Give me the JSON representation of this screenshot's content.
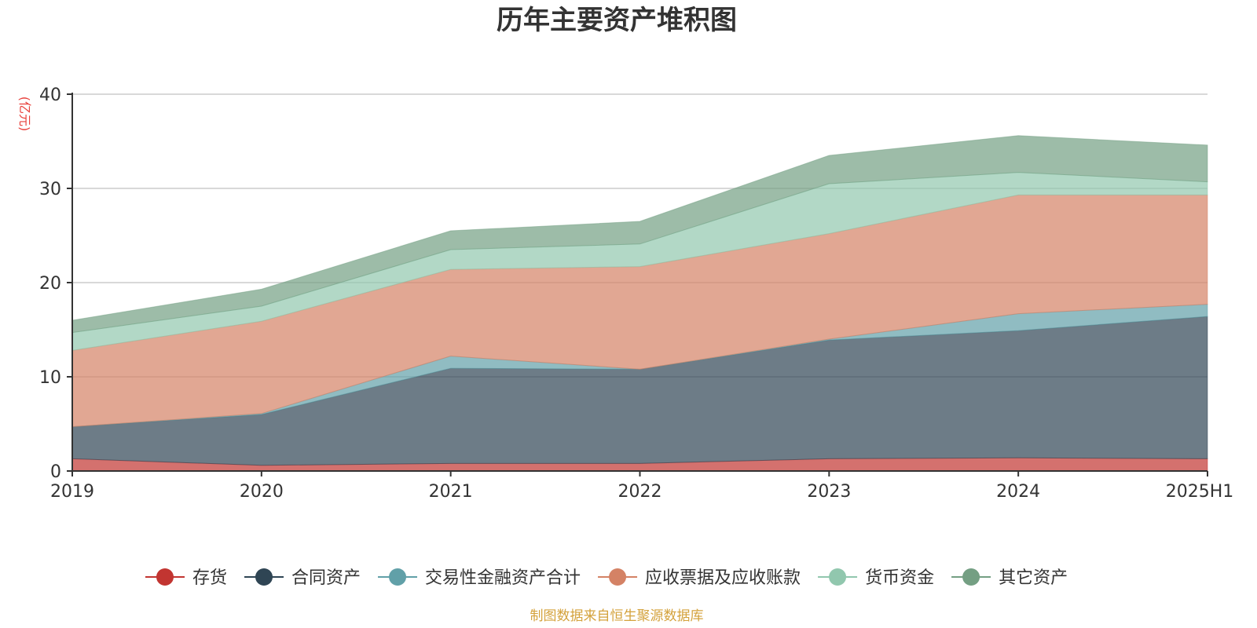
{
  "chart_data": {
    "type": "area",
    "stacked": true,
    "title": "历年主要资产堆积图",
    "unit_label": "(亿元)",
    "categories": [
      "2019",
      "2020",
      "2021",
      "2022",
      "2023",
      "2024",
      "2025H1"
    ],
    "ylim": [
      0,
      40
    ],
    "yticks": [
      0,
      10,
      20,
      30,
      40
    ],
    "grid": true,
    "legend_position": "bottom",
    "series": [
      {
        "name": "存货",
        "color": "#c23531",
        "values": [
          1.3,
          0.6,
          0.8,
          0.8,
          1.3,
          1.4,
          1.3
        ]
      },
      {
        "name": "合同资产",
        "color": "#2f4554",
        "values": [
          3.4,
          5.4,
          10.1,
          10.0,
          12.6,
          13.5,
          15.1
        ]
      },
      {
        "name": "交易性金融资产合计",
        "color": "#61a0a8",
        "values": [
          0.0,
          0.1,
          1.3,
          0.0,
          0.1,
          1.8,
          1.3
        ]
      },
      {
        "name": "应收票据及应收账款",
        "color": "#d48265",
        "values": [
          8.1,
          9.8,
          9.2,
          10.9,
          11.2,
          12.6,
          11.6
        ]
      },
      {
        "name": "货币资金",
        "color": "#91c7ae",
        "values": [
          1.9,
          1.6,
          2.1,
          2.4,
          5.3,
          2.4,
          1.4
        ]
      },
      {
        "name": "其它资产",
        "color": "#749f83",
        "values": [
          1.3,
          1.8,
          2.0,
          2.4,
          3.0,
          3.9,
          3.9
        ]
      }
    ]
  },
  "footer": {
    "source": "制图数据来自恒生聚源数据库"
  }
}
